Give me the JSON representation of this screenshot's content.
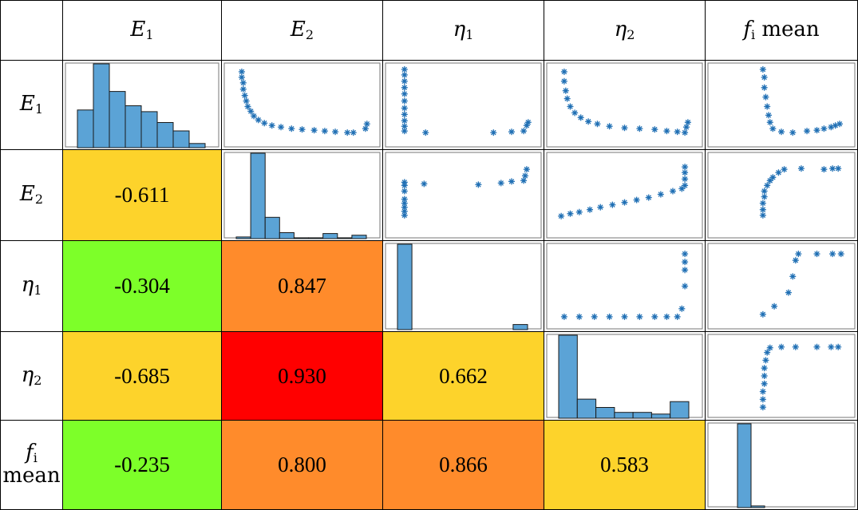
{
  "chart_data": {
    "type": "scatter-matrix",
    "variables": [
      {
        "key": "E1",
        "base": "E",
        "sub": "1",
        "text": "E1"
      },
      {
        "key": "E2",
        "base": "E",
        "sub": "2",
        "text": "E2"
      },
      {
        "key": "eta1",
        "base": "η",
        "sub": "1",
        "text": "η1"
      },
      {
        "key": "eta2",
        "base": "η",
        "sub": "2",
        "text": "η2"
      },
      {
        "key": "fi_mean",
        "base": "f",
        "sub": "i",
        "suffix": "mean",
        "text": "fi mean"
      }
    ],
    "correlations": [
      {
        "row": 1,
        "col": 0,
        "value": "-0.611",
        "color": "#fdd32b"
      },
      {
        "row": 2,
        "col": 0,
        "value": "-0.304",
        "color": "#7dff29"
      },
      {
        "row": 2,
        "col": 1,
        "value": "0.847",
        "color": "#ff8b2b"
      },
      {
        "row": 3,
        "col": 0,
        "value": "-0.685",
        "color": "#fdd32b"
      },
      {
        "row": 3,
        "col": 1,
        "value": "0.930",
        "color": "#ff0000"
      },
      {
        "row": 3,
        "col": 2,
        "value": "0.662",
        "color": "#fdd32b"
      },
      {
        "row": 4,
        "col": 0,
        "value": "-0.235",
        "color": "#7dff29"
      },
      {
        "row": 4,
        "col": 1,
        "value": "0.800",
        "color": "#ff8b2b"
      },
      {
        "row": 4,
        "col": 2,
        "value": "0.866",
        "color": "#ff8b2b"
      },
      {
        "row": 4,
        "col": 3,
        "value": "0.583",
        "color": "#fdd32b"
      }
    ],
    "histograms": [
      {
        "var": 0,
        "values": [
          0.45,
          1.0,
          0.67,
          0.5,
          0.43,
          0.3,
          0.2,
          0.05
        ]
      },
      {
        "var": 1,
        "values": [
          0.02,
          1.0,
          0.25,
          0.07,
          0.01,
          0.01,
          0.06,
          0.01,
          0.04
        ]
      },
      {
        "var": 2,
        "values": [
          1.0,
          0.0,
          0.0,
          0.0,
          0.0,
          0.0,
          0.0,
          0.0,
          0.06
        ]
      },
      {
        "var": 3,
        "values": [
          1.0,
          0.23,
          0.13,
          0.07,
          0.07,
          0.05,
          0.2
        ]
      },
      {
        "var": 4,
        "values": [
          1.0,
          0.02
        ]
      }
    ],
    "scatter_panels": [
      {
        "row": 0,
        "col": 1,
        "points": [
          [
            0.1,
            0.92
          ],
          [
            0.1,
            0.85
          ],
          [
            0.11,
            0.78
          ],
          [
            0.11,
            0.7
          ],
          [
            0.12,
            0.62
          ],
          [
            0.13,
            0.55
          ],
          [
            0.14,
            0.48
          ],
          [
            0.16,
            0.42
          ],
          [
            0.18,
            0.36
          ],
          [
            0.21,
            0.31
          ],
          [
            0.25,
            0.27
          ],
          [
            0.3,
            0.24
          ],
          [
            0.36,
            0.22
          ],
          [
            0.43,
            0.2
          ],
          [
            0.5,
            0.19
          ],
          [
            0.58,
            0.18
          ],
          [
            0.65,
            0.17
          ],
          [
            0.72,
            0.16
          ],
          [
            0.8,
            0.15
          ],
          [
            0.84,
            0.15
          ],
          [
            0.92,
            0.2
          ],
          [
            0.93,
            0.26
          ]
        ]
      },
      {
        "row": 0,
        "col": 2,
        "points": [
          [
            0.11,
            0.95
          ],
          [
            0.11,
            0.88
          ],
          [
            0.11,
            0.8
          ],
          [
            0.11,
            0.72
          ],
          [
            0.11,
            0.64
          ],
          [
            0.11,
            0.55
          ],
          [
            0.11,
            0.46
          ],
          [
            0.11,
            0.38
          ],
          [
            0.11,
            0.3
          ],
          [
            0.11,
            0.23
          ],
          [
            0.11,
            0.17
          ],
          [
            0.25,
            0.15
          ],
          [
            0.7,
            0.15
          ],
          [
            0.82,
            0.16
          ],
          [
            0.9,
            0.17
          ],
          [
            0.92,
            0.24
          ],
          [
            0.93,
            0.28
          ]
        ]
      },
      {
        "row": 0,
        "col": 3,
        "points": [
          [
            0.1,
            0.92
          ],
          [
            0.1,
            0.8
          ],
          [
            0.11,
            0.68
          ],
          [
            0.12,
            0.58
          ],
          [
            0.14,
            0.48
          ],
          [
            0.17,
            0.4
          ],
          [
            0.21,
            0.34
          ],
          [
            0.26,
            0.29
          ],
          [
            0.32,
            0.26
          ],
          [
            0.4,
            0.23
          ],
          [
            0.5,
            0.21
          ],
          [
            0.6,
            0.2
          ],
          [
            0.7,
            0.19
          ],
          [
            0.78,
            0.17
          ],
          [
            0.85,
            0.16
          ],
          [
            0.9,
            0.15
          ],
          [
            0.91,
            0.22
          ],
          [
            0.92,
            0.28
          ]
        ]
      },
      {
        "row": 0,
        "col": 4,
        "points": [
          [
            0.37,
            0.95
          ],
          [
            0.38,
            0.85
          ],
          [
            0.38,
            0.72
          ],
          [
            0.39,
            0.6
          ],
          [
            0.4,
            0.48
          ],
          [
            0.41,
            0.37
          ],
          [
            0.42,
            0.28
          ],
          [
            0.44,
            0.2
          ],
          [
            0.5,
            0.16
          ],
          [
            0.58,
            0.15
          ],
          [
            0.68,
            0.17
          ],
          [
            0.75,
            0.18
          ],
          [
            0.8,
            0.2
          ],
          [
            0.85,
            0.22
          ],
          [
            0.88,
            0.24
          ],
          [
            0.91,
            0.26
          ]
        ]
      },
      {
        "row": 1,
        "col": 2,
        "points": [
          [
            0.11,
            0.25
          ],
          [
            0.11,
            0.3
          ],
          [
            0.11,
            0.35
          ],
          [
            0.11,
            0.4
          ],
          [
            0.11,
            0.45
          ],
          [
            0.11,
            0.55
          ],
          [
            0.11,
            0.62
          ],
          [
            0.11,
            0.66
          ],
          [
            0.24,
            0.64
          ],
          [
            0.6,
            0.63
          ],
          [
            0.75,
            0.65
          ],
          [
            0.82,
            0.67
          ],
          [
            0.9,
            0.68
          ],
          [
            0.91,
            0.74
          ],
          [
            0.92,
            0.82
          ]
        ]
      },
      {
        "row": 1,
        "col": 3,
        "points": [
          [
            0.08,
            0.24
          ],
          [
            0.14,
            0.27
          ],
          [
            0.2,
            0.29
          ],
          [
            0.27,
            0.32
          ],
          [
            0.34,
            0.35
          ],
          [
            0.42,
            0.38
          ],
          [
            0.5,
            0.41
          ],
          [
            0.58,
            0.44
          ],
          [
            0.66,
            0.47
          ],
          [
            0.74,
            0.51
          ],
          [
            0.82,
            0.55
          ],
          [
            0.88,
            0.58
          ],
          [
            0.9,
            0.62
          ],
          [
            0.9,
            0.7
          ],
          [
            0.9,
            0.78
          ],
          [
            0.9,
            0.85
          ]
        ]
      },
      {
        "row": 1,
        "col": 4,
        "points": [
          [
            0.37,
            0.25
          ],
          [
            0.37,
            0.32
          ],
          [
            0.37,
            0.4
          ],
          [
            0.38,
            0.48
          ],
          [
            0.38,
            0.55
          ],
          [
            0.4,
            0.62
          ],
          [
            0.42,
            0.68
          ],
          [
            0.44,
            0.72
          ],
          [
            0.48,
            0.78
          ],
          [
            0.52,
            0.82
          ],
          [
            0.64,
            0.83
          ],
          [
            0.8,
            0.82
          ],
          [
            0.86,
            0.83
          ],
          [
            0.9,
            0.83
          ]
        ]
      },
      {
        "row": 2,
        "col": 3,
        "points": [
          [
            0.1,
            0.12
          ],
          [
            0.2,
            0.12
          ],
          [
            0.3,
            0.12
          ],
          [
            0.4,
            0.12
          ],
          [
            0.5,
            0.12
          ],
          [
            0.6,
            0.12
          ],
          [
            0.7,
            0.12
          ],
          [
            0.78,
            0.12
          ],
          [
            0.85,
            0.12
          ],
          [
            0.88,
            0.22
          ],
          [
            0.9,
            0.5
          ],
          [
            0.9,
            0.7
          ],
          [
            0.9,
            0.8
          ],
          [
            0.9,
            0.9
          ]
        ]
      },
      {
        "row": 2,
        "col": 4,
        "points": [
          [
            0.37,
            0.15
          ],
          [
            0.45,
            0.25
          ],
          [
            0.55,
            0.42
          ],
          [
            0.58,
            0.62
          ],
          [
            0.6,
            0.82
          ],
          [
            0.62,
            0.9
          ],
          [
            0.75,
            0.9
          ],
          [
            0.86,
            0.9
          ],
          [
            0.92,
            0.9
          ]
        ]
      },
      {
        "row": 3,
        "col": 4,
        "points": [
          [
            0.37,
            0.1
          ],
          [
            0.37,
            0.2
          ],
          [
            0.37,
            0.3
          ],
          [
            0.38,
            0.4
          ],
          [
            0.38,
            0.5
          ],
          [
            0.38,
            0.6
          ],
          [
            0.39,
            0.7
          ],
          [
            0.4,
            0.8
          ],
          [
            0.42,
            0.86
          ],
          [
            0.5,
            0.87
          ],
          [
            0.6,
            0.87
          ],
          [
            0.75,
            0.87
          ],
          [
            0.85,
            0.87
          ],
          [
            0.9,
            0.87
          ]
        ]
      }
    ]
  },
  "style": {
    "hist_color": "#5ba3d6",
    "marker_color": "#1f6fb4",
    "border_color": "#000000"
  }
}
